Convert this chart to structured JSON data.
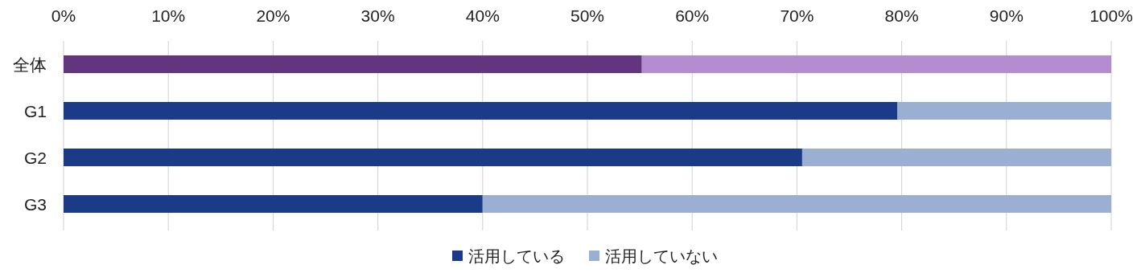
{
  "chart_data": {
    "type": "bar",
    "orientation": "horizontal",
    "stacked": true,
    "categories": [
      "全体",
      "G1",
      "G2",
      "G3"
    ],
    "series": [
      {
        "name": "活用している",
        "color": "#1b3a87",
        "colors": [
          "#63357f",
          "#1b3a87",
          "#1b3a87",
          "#1b3a87"
        ],
        "values": [
          55.2,
          79.6,
          70.5,
          40
        ]
      },
      {
        "name": "活用していない",
        "color": "#9aafd2",
        "colors": [
          "#b48ccf",
          "#9aafd2",
          "#9aafd2",
          "#9aafd2"
        ],
        "values": [
          44.8,
          20.4,
          29.5,
          60
        ]
      }
    ],
    "xlim": [
      0,
      100
    ],
    "xticks": [
      {
        "value": 0,
        "label": "0%"
      },
      {
        "value": 10,
        "label": "10%"
      },
      {
        "value": 20,
        "label": "20%"
      },
      {
        "value": 30,
        "label": "30%"
      },
      {
        "value": 40,
        "label": "40%"
      },
      {
        "value": 50,
        "label": "50%"
      },
      {
        "value": 60,
        "label": "60%"
      },
      {
        "value": 70,
        "label": "70%"
      },
      {
        "value": 80,
        "label": "80%"
      },
      {
        "value": 90,
        "label": "90%"
      },
      {
        "value": 100,
        "label": "100%"
      }
    ],
    "grid": "x",
    "legend": "bottom"
  }
}
